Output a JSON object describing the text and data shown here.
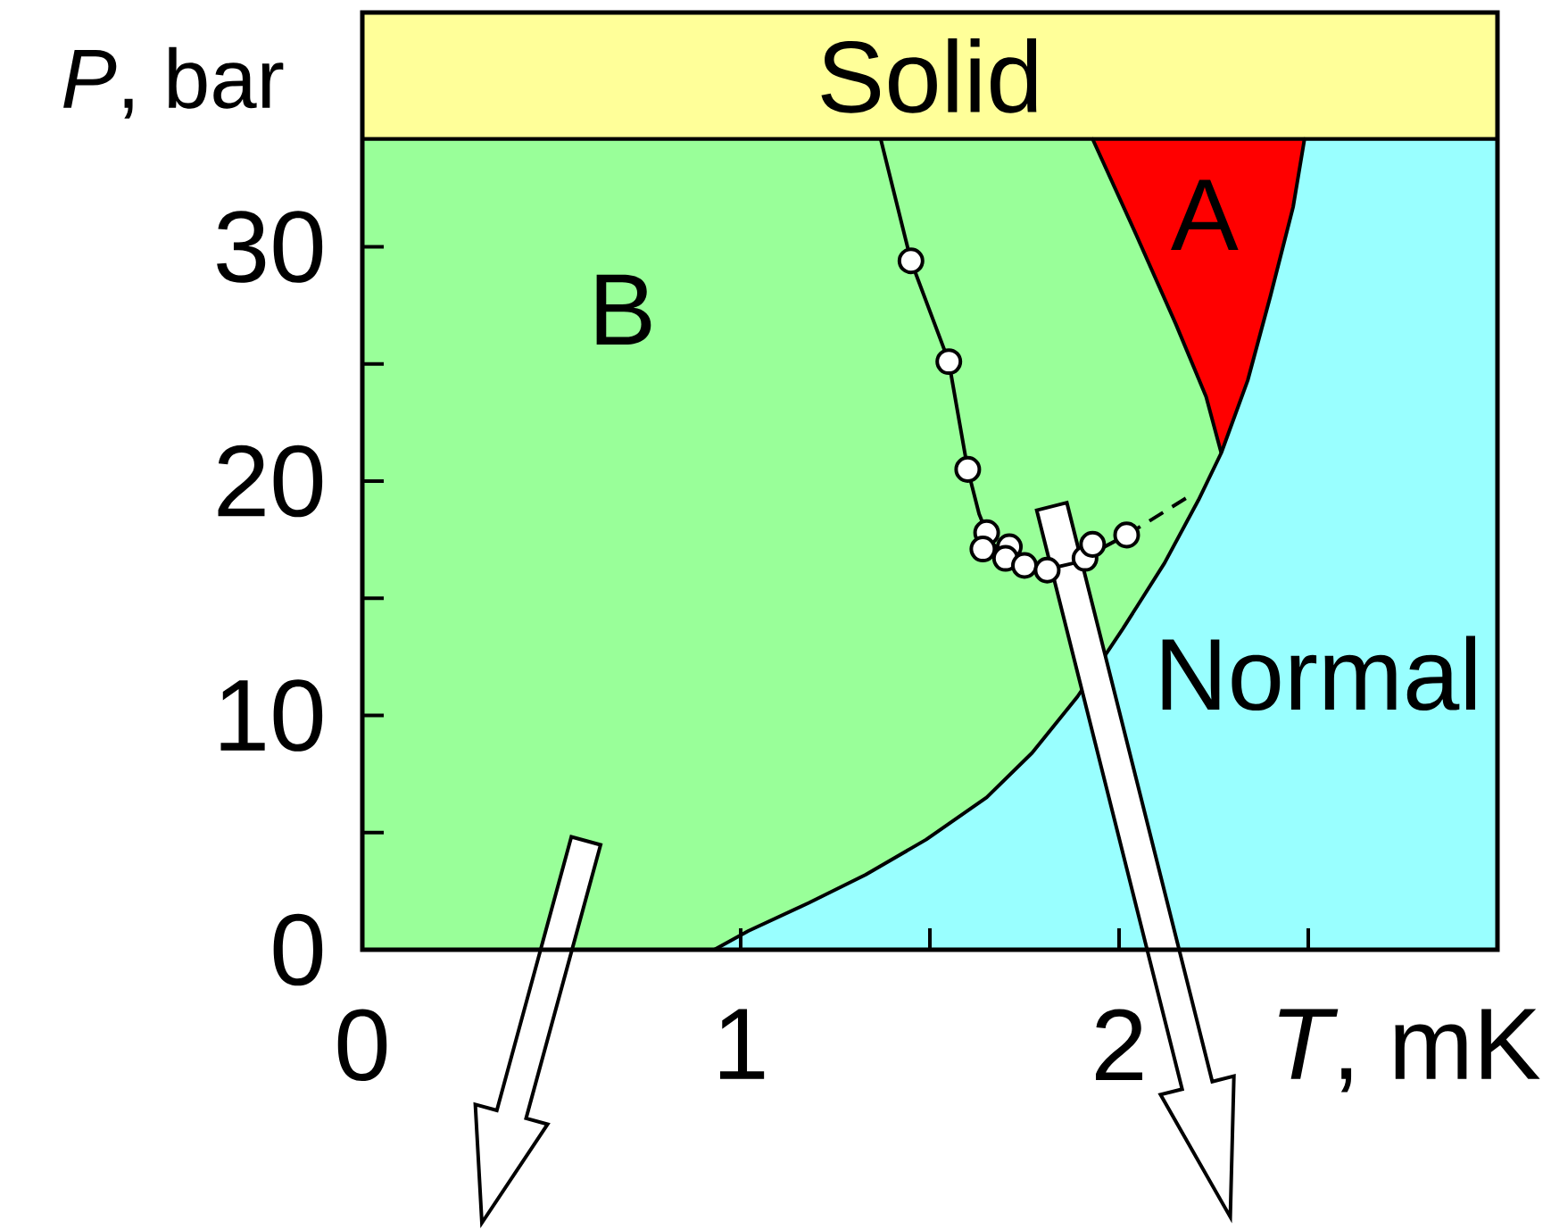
{
  "chart_data": {
    "type": "area",
    "xlabel": "*T*, mK",
    "ylabel": "*P*, bar",
    "xlim": [
      0,
      3
    ],
    "ylim": [
      0,
      40
    ],
    "xticks": [
      0,
      1,
      {
        "value": 1.5,
        "label": null
      },
      2,
      {
        "value": 2.5,
        "label": null
      }
    ],
    "yticks": [
      0,
      {
        "value": 5,
        "label": null
      },
      10,
      {
        "value": 15,
        "label": null
      },
      20,
      {
        "value": 25,
        "label": null
      },
      30
    ],
    "bands": [
      {
        "axis": "y",
        "from": 34.6,
        "to": 40,
        "label": "Solid",
        "color": "#ffff99"
      }
    ],
    "series": [
      {
        "name": "A",
        "color": "#ff0000",
        "x": [
          1.93,
          2.49
        ],
        "values": [
          34.6,
          34.6
        ]
      },
      {
        "name": "B",
        "color": "#99ff99",
        "x": [
          0,
          1.93,
          2.04,
          2.15,
          2.23,
          2.27
        ],
        "values": [
          34.6,
          34.6,
          30.7,
          26.7,
          23.6,
          21.2
        ]
      },
      {
        "name": "Normal",
        "color": "#99ffff",
        "x": [
          0.93,
          1.02,
          1.18,
          1.33,
          1.49,
          1.65,
          1.77,
          1.89,
          2.01,
          2.12,
          2.21,
          2.27,
          2.34,
          2.4,
          2.46,
          2.49,
          3
        ],
        "values": [
          0,
          0.8,
          2.0,
          3.2,
          4.7,
          6.5,
          8.4,
          10.8,
          13.7,
          16.5,
          19.2,
          21.2,
          24.3,
          27.9,
          31.7,
          34.6,
          34.6
        ]
      },
      {
        "type": "line",
        "color": "#000000",
        "x": [
          1.37,
          1.45,
          1.55,
          1.6,
          1.63,
          1.66,
          1.72,
          1.8,
          1.88,
          1.95,
          2.02
        ],
        "values": [
          34.6,
          29.4,
          25.1,
          20.5,
          18.6,
          17.4,
          16.6,
          16.2,
          16.5,
          17.1,
          17.7
        ]
      },
      {
        "type": "line",
        "color": "#000000",
        "line_style": "dashed",
        "x": [
          2.02,
          2.2
        ],
        "values": [
          17.7,
          19.5
        ]
      },
      {
        "type": "scatter",
        "color": "#ffffff",
        "marker": "circle",
        "x": [
          1.45,
          1.55,
          1.6,
          1.65,
          1.64,
          1.71,
          1.7,
          1.75,
          1.81,
          1.91,
          1.93,
          2.02
        ],
        "values": [
          29.4,
          25.1,
          20.5,
          17.8,
          17.1,
          17.2,
          16.7,
          16.4,
          16.2,
          16.7,
          17.3,
          17.7
        ]
      }
    ]
  }
}
